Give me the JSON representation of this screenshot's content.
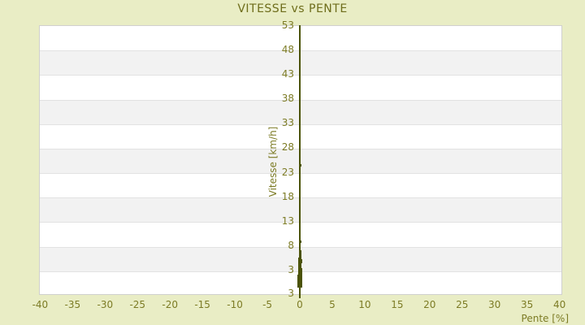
{
  "title": "VITESSE vs PENTE",
  "colors": {
    "background": "#e9edc5",
    "plot_background": "#ffffff",
    "band_alternate": "#f2f2f2",
    "gridline": "#e2e2e2",
    "plot_border": "#d0d0ce",
    "title_text": "#6e6d1b",
    "tick_text": "#7c7b24",
    "axis_and_points": "#4b5307"
  },
  "chart_data": {
    "type": "scatter",
    "title": "VITESSE vs PENTE",
    "xlabel": "Pente [%]",
    "ylabel": "Vitesse [km/h]",
    "xlim": [
      -40.1,
      40.4
    ],
    "ylim": [
      -2,
      53
    ],
    "xticks": [
      -40,
      -35,
      -30,
      -25,
      -20,
      -15,
      -10,
      -5,
      0,
      5,
      10,
      15,
      20,
      25,
      30,
      35,
      40
    ],
    "yticks": [
      53,
      48,
      43,
      38,
      33,
      28,
      23,
      18,
      13,
      8,
      3
    ],
    "y_axis_bottom_label": "3",
    "grid": "horizontal-bands-alternating",
    "legend": null,
    "y_axis_position_x": 0,
    "series": [
      {
        "name": "vitesse-vs-pente",
        "x_constant": 0,
        "points": [
          {
            "y": 24.5,
            "s": 3
          },
          {
            "y": 8.9,
            "s": 3
          },
          {
            "y": 6.8,
            "s": 3
          },
          {
            "y": 6.5,
            "s": 3
          },
          {
            "y": 6.2,
            "s": 3
          },
          {
            "y": 5.9,
            "s": 3
          },
          {
            "y": 5.6,
            "s": 3
          },
          {
            "y": 5.3,
            "s": 4
          },
          {
            "y": 5.1,
            "s": 4
          },
          {
            "y": 4.9,
            "s": 5
          },
          {
            "y": 4.7,
            "s": 4
          },
          {
            "y": 4.4,
            "s": 3
          },
          {
            "y": 4.2,
            "s": 4
          },
          {
            "y": 4.0,
            "s": 3
          },
          {
            "y": 3.8,
            "s": 4
          },
          {
            "y": 3.6,
            "s": 3
          },
          {
            "y": 3.4,
            "s": 4
          },
          {
            "y": 3.2,
            "s": 3
          },
          {
            "y": 3.0,
            "s": 5
          },
          {
            "y": 2.8,
            "s": 4
          },
          {
            "y": 2.6,
            "s": 5
          },
          {
            "y": 2.4,
            "s": 4
          },
          {
            "y": 2.2,
            "s": 4
          },
          {
            "y": 2.0,
            "s": 4
          },
          {
            "y": 1.8,
            "s": 5
          },
          {
            "y": 1.6,
            "s": 6
          },
          {
            "y": 1.4,
            "s": 6
          },
          {
            "y": 1.2,
            "s": 6
          },
          {
            "y": 1.0,
            "s": 6
          },
          {
            "y": 0.8,
            "s": 6
          },
          {
            "y": 0.6,
            "s": 6
          },
          {
            "y": 0.4,
            "s": 6
          },
          {
            "y": 0.2,
            "s": 6
          },
          {
            "y": 0.0,
            "s": 6
          }
        ]
      }
    ]
  }
}
